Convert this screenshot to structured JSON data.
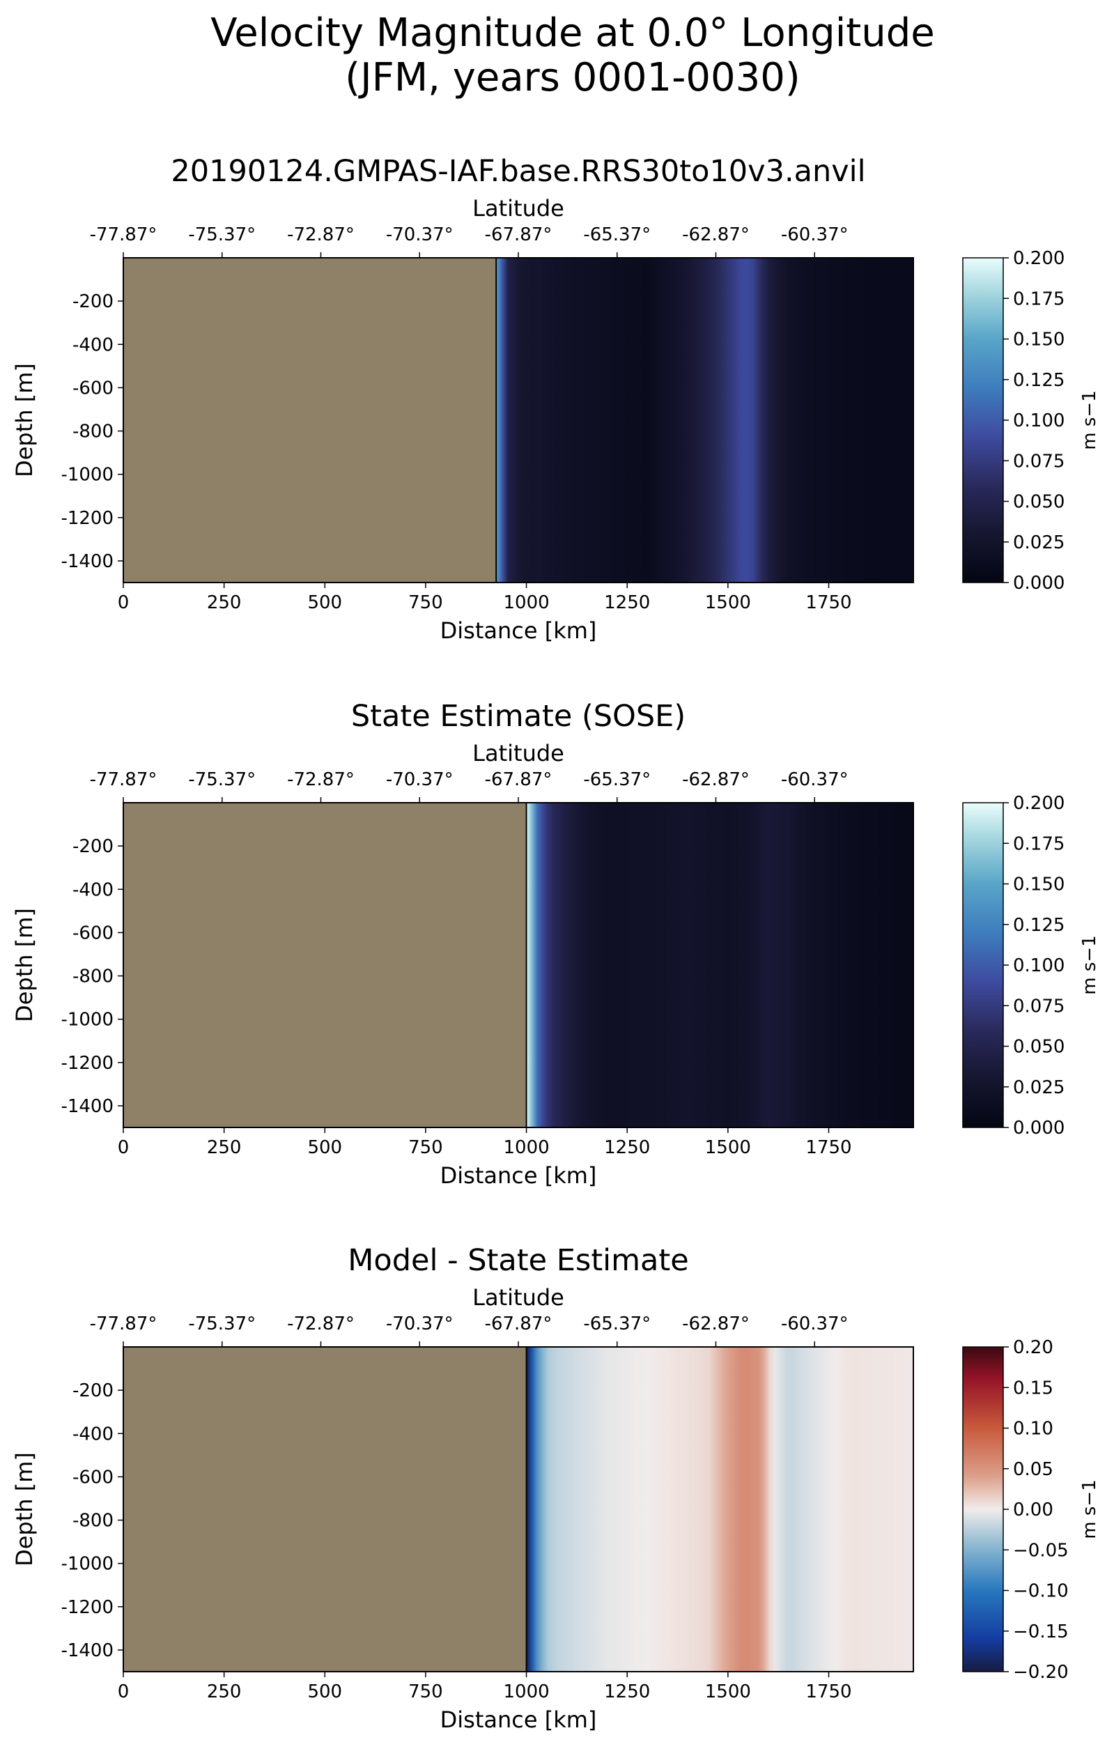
{
  "figure": {
    "title_line1": "Velocity Magnitude at 0.0° Longitude",
    "title_line2": "(JFM, years 0001-0030)"
  },
  "colors": {
    "land": "#8f8168",
    "axis": "#000000"
  },
  "chart_data": [
    {
      "type": "heatmap",
      "title": "20190124.GMPAS-IAF.base.RRS30to10v3.anvil",
      "xlabel": "Distance [km]",
      "ylabel": "Depth [m]",
      "top_xlabel": "Latitude",
      "xlim": [
        0,
        1960
      ],
      "ylim": [
        -1500,
        0
      ],
      "xticks": [
        "0",
        "250",
        "500",
        "750",
        "1000",
        "1250",
        "1500",
        "1750"
      ],
      "yticks": [
        "-200",
        "-400",
        "-600",
        "-800",
        "-1000",
        "-1200",
        "-1400"
      ],
      "top_xticks": [
        "-77.87°",
        "-75.37°",
        "-72.87°",
        "-70.37°",
        "-67.87°",
        "-65.37°",
        "-62.87°",
        "-60.37°"
      ],
      "land_until_km": 925,
      "colormap": "ice",
      "colorbar": {
        "label": "m s−1",
        "range": [
          0,
          0.2
        ],
        "ticks": [
          "0.200",
          "0.175",
          "0.150",
          "0.125",
          "0.100",
          "0.075",
          "0.050",
          "0.025",
          "0.000"
        ]
      },
      "profile": {
        "x": [
          925,
          935,
          950,
          980,
          1040,
          1100,
          1200,
          1300,
          1400,
          1450,
          1500,
          1540,
          1560,
          1600,
          1650,
          1700,
          1800,
          1900,
          1960
        ],
        "v": [
          0.15,
          0.12,
          0.05,
          0.03,
          0.025,
          0.02,
          0.015,
          0.01,
          0.03,
          0.045,
          0.07,
          0.09,
          0.085,
          0.04,
          0.02,
          0.015,
          0.01,
          0.008,
          0.008
        ]
      }
    },
    {
      "type": "heatmap",
      "title": "State Estimate (SOSE)",
      "xlabel": "Distance [km]",
      "ylabel": "Depth [m]",
      "top_xlabel": "Latitude",
      "xlim": [
        0,
        1960
      ],
      "ylim": [
        -1500,
        0
      ],
      "xticks": [
        "0",
        "250",
        "500",
        "750",
        "1000",
        "1250",
        "1500",
        "1750"
      ],
      "yticks": [
        "-200",
        "-400",
        "-600",
        "-800",
        "-1000",
        "-1200",
        "-1400"
      ],
      "top_xticks": [
        "-77.87°",
        "-75.37°",
        "-72.87°",
        "-70.37°",
        "-67.87°",
        "-65.37°",
        "-62.87°",
        "-60.37°"
      ],
      "land_until_km": 1000,
      "colormap": "ice",
      "colorbar": {
        "label": "m s−1",
        "range": [
          0,
          0.2
        ],
        "ticks": [
          "0.200",
          "0.175",
          "0.150",
          "0.125",
          "0.100",
          "0.075",
          "0.050",
          "0.025",
          "0.000"
        ]
      },
      "profile": {
        "x": [
          1000,
          1015,
          1030,
          1060,
          1100,
          1150,
          1200,
          1300,
          1400,
          1500,
          1560,
          1600,
          1650,
          1700,
          1800,
          1900,
          1960
        ],
        "v": [
          0.2,
          0.16,
          0.1,
          0.06,
          0.04,
          0.025,
          0.018,
          0.02,
          0.025,
          0.02,
          0.025,
          0.035,
          0.03,
          0.02,
          0.012,
          0.008,
          0.006
        ]
      }
    },
    {
      "type": "heatmap",
      "title": "Model - State Estimate",
      "xlabel": "Distance [km]",
      "ylabel": "Depth [m]",
      "top_xlabel": "Latitude",
      "xlim": [
        0,
        1960
      ],
      "ylim": [
        -1500,
        0
      ],
      "xticks": [
        "0",
        "250",
        "500",
        "750",
        "1000",
        "1250",
        "1500",
        "1750"
      ],
      "yticks": [
        "-200",
        "-400",
        "-600",
        "-800",
        "-1000",
        "-1200",
        "-1400"
      ],
      "top_xticks": [
        "-77.87°",
        "-75.37°",
        "-72.87°",
        "-70.37°",
        "-67.87°",
        "-65.37°",
        "-62.87°",
        "-60.37°"
      ],
      "land_until_km": 1000,
      "colormap": "balance",
      "colorbar": {
        "label": "m s−1",
        "range": [
          -0.2,
          0.2
        ],
        "ticks": [
          "0.20",
          "0.15",
          "0.10",
          "0.05",
          "0.00",
          "−0.05",
          "−0.10",
          "−0.15",
          "−0.20"
        ]
      },
      "profile": {
        "x": [
          1000,
          1010,
          1025,
          1050,
          1080,
          1120,
          1200,
          1300,
          1450,
          1500,
          1540,
          1580,
          1610,
          1650,
          1700,
          1800,
          1900,
          1960
        ],
        "v": [
          -0.2,
          -0.15,
          -0.08,
          -0.03,
          -0.02,
          -0.015,
          -0.005,
          0.0,
          0.01,
          0.04,
          0.06,
          0.05,
          0.0,
          -0.02,
          -0.01,
          0.005,
          0.003,
          0.002
        ]
      }
    }
  ]
}
